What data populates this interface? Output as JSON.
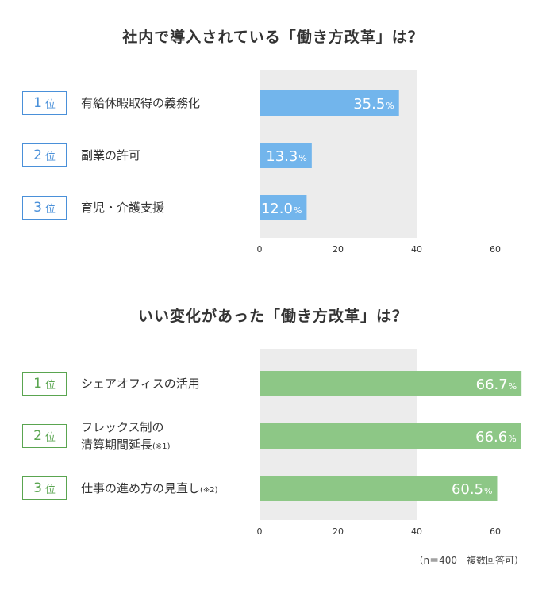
{
  "footnote": "（n＝400　複数回答可）",
  "chart_data": [
    {
      "type": "bar",
      "orientation": "horizontal",
      "title": "社内で導入されている「働き方改革」は？",
      "rank_unit": "位",
      "categories": [
        "有給休暇取得の義務化",
        "副業の許可",
        "育児・介護支援"
      ],
      "ranks": [
        "1",
        "2",
        "3"
      ],
      "values": [
        35.5,
        13.3,
        12.0
      ],
      "value_labels": [
        "35.5",
        "13.3",
        "12.0"
      ],
      "value_unit": "%",
      "xlim": [
        0,
        60
      ],
      "xticks": [
        "0",
        "20",
        "40",
        "60"
      ],
      "color": "#72b5ec",
      "rank_color": "#4a90d9"
    },
    {
      "type": "bar",
      "orientation": "horizontal",
      "title": "いい変化があった「働き方改革」は？",
      "rank_unit": "位",
      "categories": [
        "シェアオフィスの活用",
        "フレックス制の\n清算期間延長",
        "仕事の進め方の見直し"
      ],
      "category_notes": [
        "",
        "(※1)",
        "(※2)"
      ],
      "ranks": [
        "1",
        "2",
        "3"
      ],
      "values": [
        66.7,
        66.6,
        60.5
      ],
      "value_labels": [
        "66.7",
        "66.6",
        "60.5"
      ],
      "value_unit": "%",
      "xlim": [
        0,
        60
      ],
      "xticks": [
        "0",
        "20",
        "40",
        "60"
      ],
      "color": "#8dc786",
      "rank_color": "#5aa550"
    }
  ]
}
